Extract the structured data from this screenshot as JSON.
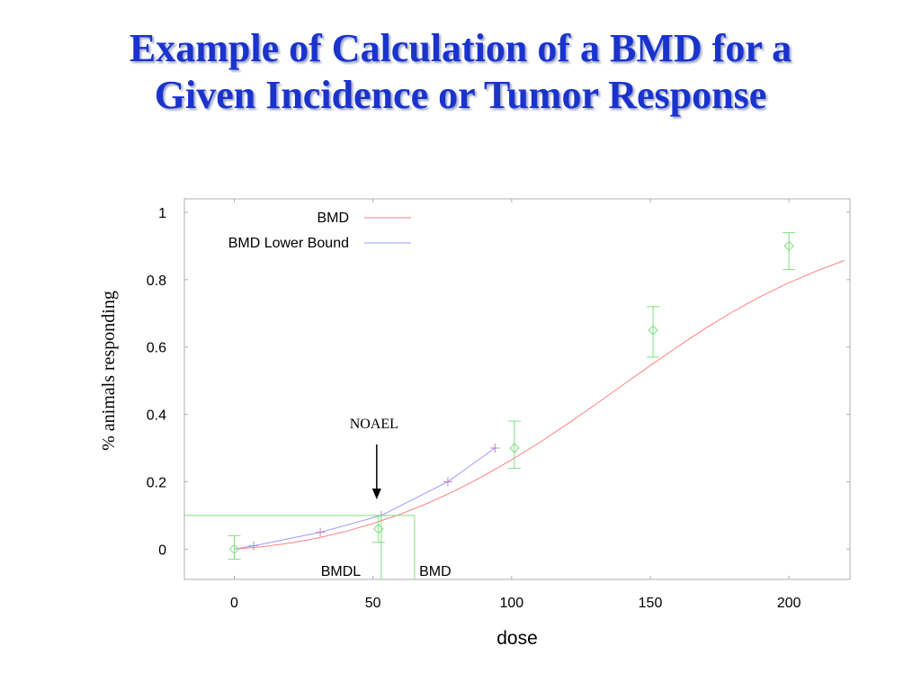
{
  "slide": {
    "title_line1": "Example of Calculation of a BMD for a",
    "title_line2": "Given Incidence or Tumor Response"
  },
  "chart_data": {
    "type": "scatter",
    "title": "",
    "xlabel": "dose",
    "ylabel": "% animals responding",
    "xlim": [
      -18,
      222
    ],
    "ylim": [
      -0.09,
      1.04
    ],
    "grid": false,
    "x_ticks": [
      0,
      50,
      100,
      150,
      200
    ],
    "x_tick_labels": [
      "0",
      "50",
      "100",
      "150",
      "200"
    ],
    "y_ticks": [
      0,
      0.2,
      0.4,
      0.6,
      0.8,
      1
    ],
    "y_tick_labels": [
      "0",
      "0.2",
      "0.4",
      "0.6",
      "0.8",
      "1"
    ],
    "legend": {
      "position": "top-left",
      "entries": [
        {
          "label": "BMD",
          "color": "#ff8080"
        },
        {
          "label": "BMD Lower Bound",
          "color": "#9a9aff"
        }
      ]
    },
    "observed": {
      "color": "#80e080",
      "points": [
        {
          "x": 0,
          "y": 0.0,
          "lo": -0.03,
          "hi": 0.04
        },
        {
          "x": 52,
          "y": 0.06,
          "lo": 0.02,
          "hi": 0.1
        },
        {
          "x": 101,
          "y": 0.3,
          "lo": 0.24,
          "hi": 0.38
        },
        {
          "x": 151,
          "y": 0.65,
          "lo": 0.57,
          "hi": 0.72
        },
        {
          "x": 200,
          "y": 0.9,
          "lo": 0.83,
          "hi": 0.94
        }
      ]
    },
    "bmd_curve": {
      "name": "BMD",
      "color": "#ff8080",
      "x": [
        0,
        10,
        20,
        30,
        40,
        50,
        60,
        70,
        80,
        90,
        100,
        110,
        120,
        130,
        140,
        150,
        160,
        170,
        180,
        190,
        200,
        210,
        220
      ],
      "y": [
        0.0,
        0.007,
        0.018,
        0.033,
        0.052,
        0.076,
        0.104,
        0.137,
        0.175,
        0.218,
        0.265,
        0.316,
        0.371,
        0.428,
        0.487,
        0.545,
        0.602,
        0.656,
        0.706,
        0.751,
        0.791,
        0.826,
        0.857
      ]
    },
    "lower_bound_curve": {
      "name": "BMD Lower Bound",
      "color": "#9a9aff",
      "x": [
        0,
        7,
        31,
        53,
        77,
        94
      ],
      "y": [
        0.0,
        0.01,
        0.05,
        0.1,
        0.2,
        0.3
      ],
      "markers_x": [
        7,
        31,
        53,
        77,
        94
      ],
      "markers_y": [
        0.01,
        0.05,
        0.1,
        0.2,
        0.3
      ]
    },
    "bmr_line": {
      "y": 0.1,
      "x_start": -18,
      "x_end": 65,
      "color": "#80e080"
    },
    "bmdl": {
      "x": 53,
      "label": "BMDL",
      "color": "#80e080"
    },
    "bmd": {
      "x": 65,
      "label": "BMD",
      "color": "#80e080"
    },
    "noael": {
      "x": 52,
      "y": 0.1,
      "label": "NOAEL"
    }
  }
}
